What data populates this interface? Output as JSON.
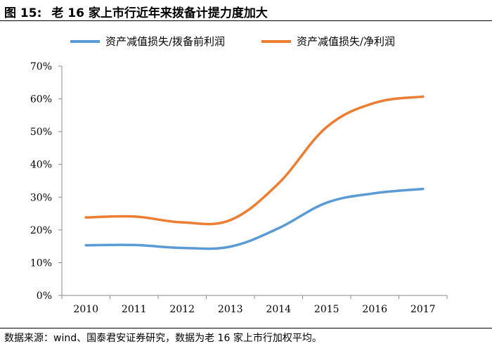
{
  "header": {
    "figure_number": "图 15:",
    "title": "老 16 家上市行近年来拨备计提力度加大"
  },
  "chart_data": {
    "type": "line",
    "title": "老 16 家上市行近年来拨备计提力度加大",
    "x": [
      "2010",
      "2011",
      "2012",
      "2013",
      "2014",
      "2015",
      "2016",
      "2017"
    ],
    "ylim": [
      0,
      70
    ],
    "yticks": [
      "0%",
      "10%",
      "20%",
      "30%",
      "40%",
      "50%",
      "60%",
      "70%"
    ],
    "ytick_values": [
      0,
      10,
      20,
      30,
      40,
      50,
      60,
      70
    ],
    "xlabel": "",
    "ylabel": "",
    "grid": false,
    "legend_position": "top",
    "series": [
      {
        "name": "资产减值损失/拨备前利润",
        "color": "#5b9bd5",
        "values": [
          15.3,
          15.4,
          14.5,
          14.9,
          20.5,
          28.3,
          31.2,
          32.5
        ]
      },
      {
        "name": "资产减值损失/净利润",
        "color": "#ed7d31",
        "values": [
          23.8,
          24.1,
          22.3,
          23.0,
          34.2,
          51.4,
          58.8,
          60.7
        ]
      }
    ]
  },
  "footer": {
    "source": "数据来源：wind、国泰君安证券研究，数据为老 16 家上市行加权平均。"
  }
}
